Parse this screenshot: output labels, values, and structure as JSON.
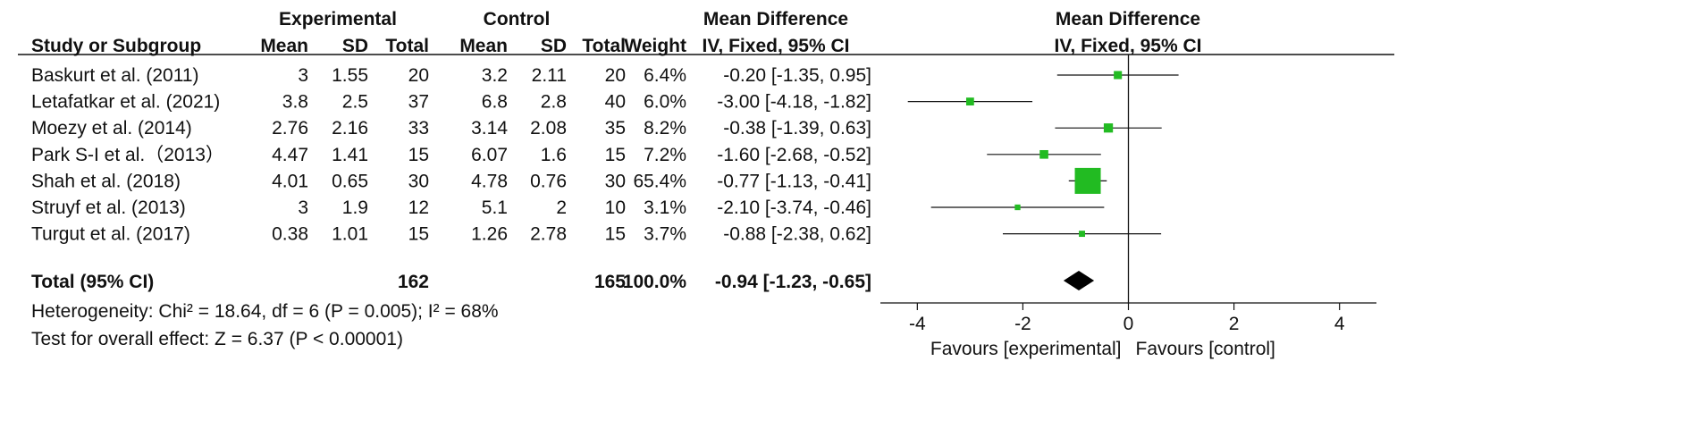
{
  "chart_data": {
    "type": "forest",
    "headers": {
      "group_experimental": "Experimental",
      "group_control": "Control",
      "effect_table": "Mean Difference",
      "effect_plot": "Mean Difference",
      "study": "Study or Subgroup",
      "mean_e": "Mean",
      "sd_e": "SD",
      "total_e": "Total",
      "mean_c": "Mean",
      "sd_c": "SD",
      "total_c": "Total",
      "weight": "Weight",
      "method_table": "IV, Fixed, 95% CI",
      "method_plot": "IV, Fixed, 95% CI"
    },
    "studies": [
      {
        "name": "Baskurt et al. (2011)",
        "mean_e": "3",
        "sd_e": "1.55",
        "total_e": "20",
        "mean_c": "3.2",
        "sd_c": "2.11",
        "total_c": "20",
        "weight": "6.4%",
        "ci_text": "-0.20 [-1.35, 0.95]",
        "md": -0.2,
        "lo": -1.35,
        "hi": 0.95,
        "w": 6.4
      },
      {
        "name": "Letafatkar et al. (2021)",
        "mean_e": "3.8",
        "sd_e": "2.5",
        "total_e": "37",
        "mean_c": "6.8",
        "sd_c": "2.8",
        "total_c": "40",
        "weight": "6.0%",
        "ci_text": "-3.00 [-4.18, -1.82]",
        "md": -3.0,
        "lo": -4.18,
        "hi": -1.82,
        "w": 6.0
      },
      {
        "name": "Moezy et al. (2014)",
        "mean_e": "2.76",
        "sd_e": "2.16",
        "total_e": "33",
        "mean_c": "3.14",
        "sd_c": "2.08",
        "total_c": "35",
        "weight": "8.2%",
        "ci_text": "-0.38 [-1.39, 0.63]",
        "md": -0.38,
        "lo": -1.39,
        "hi": 0.63,
        "w": 8.2
      },
      {
        "name": "Park S-I et al.（2013）",
        "mean_e": "4.47",
        "sd_e": "1.41",
        "total_e": "15",
        "mean_c": "6.07",
        "sd_c": "1.6",
        "total_c": "15",
        "weight": "7.2%",
        "ci_text": "-1.60 [-2.68, -0.52]",
        "md": -1.6,
        "lo": -2.68,
        "hi": -0.52,
        "w": 7.2
      },
      {
        "name": "Shah et al. (2018)",
        "mean_e": "4.01",
        "sd_e": "0.65",
        "total_e": "30",
        "mean_c": "4.78",
        "sd_c": "0.76",
        "total_c": "30",
        "weight": "65.4%",
        "ci_text": "-0.77 [-1.13, -0.41]",
        "md": -0.77,
        "lo": -1.13,
        "hi": -0.41,
        "w": 65.4
      },
      {
        "name": "Struyf et al. (2013)",
        "mean_e": "3",
        "sd_e": "1.9",
        "total_e": "12",
        "mean_c": "5.1",
        "sd_c": "2",
        "total_c": "10",
        "weight": "3.1%",
        "ci_text": "-2.10 [-3.74, -0.46]",
        "md": -2.1,
        "lo": -3.74,
        "hi": -0.46,
        "w": 3.1
      },
      {
        "name": "Turgut et al. (2017)",
        "mean_e": "0.38",
        "sd_e": "1.01",
        "total_e": "15",
        "mean_c": "1.26",
        "sd_c": "2.78",
        "total_c": "15",
        "weight": "3.7%",
        "ci_text": "-0.88 [-2.38, 0.62]",
        "md": -0.88,
        "lo": -2.38,
        "hi": 0.62,
        "w": 3.7
      }
    ],
    "total": {
      "name": "Total (95% CI)",
      "total_e": "162",
      "total_c": "165",
      "weight": "100.0%",
      "ci_text": "-0.94 [-1.23, -0.65]",
      "md": -0.94,
      "lo": -1.23,
      "hi": -0.65
    },
    "heterogeneity": "Heterogeneity: Chi² = 18.64, df = 6 (P = 0.005); I² = 68%",
    "overall_effect": "Test for overall effect: Z = 6.37 (P < 0.00001)",
    "xlim": [
      -4.7,
      4.7
    ],
    "ticks": [
      -4,
      -2,
      0,
      2,
      4
    ],
    "tick_labels": [
      "-4",
      "-2",
      "0",
      "2",
      "4"
    ],
    "favours_left": "Favours [experimental]",
    "favours_right": "Favours [control]",
    "colors": {
      "square": "#22bb22",
      "diamond": "#000000",
      "line": "#111111"
    }
  }
}
